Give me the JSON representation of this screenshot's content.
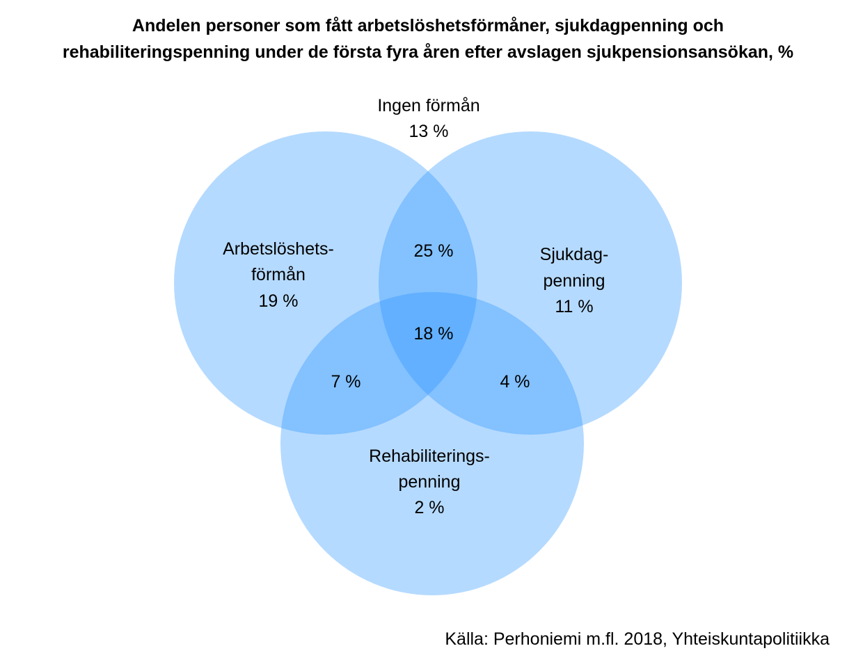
{
  "title": {
    "line1": "Andelen personer som fått arbetslöshetsförmåner, sjukdagpenning och",
    "line2": "rehabiliteringspenning under de första fyra åren efter avslagen sjukpensionsansökan, %"
  },
  "colors": {
    "circle_fill": "#1E90FF",
    "circle_opacity": 0.33
  },
  "diagram": {
    "sets": [
      {
        "name_lines": [
          "Arbetslöshets-",
          "förmån"
        ],
        "value": "19 %"
      },
      {
        "name_lines": [
          "Sjukdag-",
          "penning"
        ],
        "value": "11 %"
      },
      {
        "name_lines": [
          "Rehabiliterings-",
          "penning"
        ],
        "value": "2 %"
      }
    ],
    "none": {
      "label": "Ingen förmån",
      "value": "13 %"
    },
    "overlaps": {
      "arbetsloshet_sjukdag": "25 %",
      "all_three": "18 %",
      "arbetsloshet_rehab": "7 %",
      "sjukdag_rehab": "4 %"
    }
  },
  "source": "Källa: Perhoniemi m.fl. 2018, Yhteiskuntapolitiikka"
}
